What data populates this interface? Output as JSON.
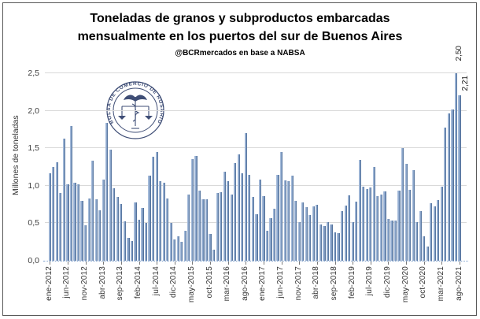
{
  "header": {
    "title_line1": "Toneladas de granos y subproductos embarcadas",
    "title_line2": "mensualmente en los puertos del sur de Buenos Aires",
    "subtitle": "@BCRmercados en base a NABSA"
  },
  "watermark": {
    "text": "BOLSA DE COMERCIO DE ROSARIO"
  },
  "chart_data": {
    "type": "bar",
    "title": "Toneladas de granos y subproductos embarcadas mensualmente en los puertos del sur de Buenos Aires",
    "subtitle": "@BCRmercados en base a NABSA",
    "xlabel": "",
    "ylabel": "Millones de toneladas",
    "ylim": [
      0,
      2.5
    ],
    "y_tick_step": 0.5,
    "y_tick_labels": [
      "0,0",
      "0,5",
      "1,0",
      "1,5",
      "2,0",
      "2,5"
    ],
    "grid": "horizontal-light",
    "legend": "none",
    "x_tick_interval": 5,
    "x_tick_labels_shown": [
      "ene-2012",
      "jun-2012",
      "nov-2012",
      "abr-2013",
      "sep-2013",
      "feb-2014",
      "jul-2014",
      "dic-2014",
      "may-2015",
      "oct-2015",
      "mar-2016",
      "ago-2016",
      "ene-2017",
      "jun-2017",
      "nov-2017",
      "abr-2018",
      "sep-2018",
      "feb-2019",
      "jul-2019",
      "dic-2019",
      "may-2020",
      "oct-2020",
      "mar-2021",
      "ago-2021"
    ],
    "categories": [
      "ene-2012",
      "feb-2012",
      "mar-2012",
      "abr-2012",
      "may-2012",
      "jun-2012",
      "jul-2012",
      "ago-2012",
      "sep-2012",
      "oct-2012",
      "nov-2012",
      "dic-2012",
      "ene-2013",
      "feb-2013",
      "mar-2013",
      "abr-2013",
      "may-2013",
      "jun-2013",
      "jul-2013",
      "ago-2013",
      "sep-2013",
      "oct-2013",
      "nov-2013",
      "dic-2013",
      "ene-2014",
      "feb-2014",
      "mar-2014",
      "abr-2014",
      "may-2014",
      "jun-2014",
      "jul-2014",
      "ago-2014",
      "sep-2014",
      "oct-2014",
      "nov-2014",
      "dic-2014",
      "ene-2015",
      "feb-2015",
      "mar-2015",
      "abr-2015",
      "may-2015",
      "jun-2015",
      "jul-2015",
      "ago-2015",
      "sep-2015",
      "oct-2015",
      "nov-2015",
      "dic-2015",
      "ene-2016",
      "feb-2016",
      "mar-2016",
      "abr-2016",
      "may-2016",
      "jun-2016",
      "jul-2016",
      "ago-2016",
      "sep-2016",
      "oct-2016",
      "nov-2016",
      "dic-2016",
      "ene-2017",
      "feb-2017",
      "mar-2017",
      "abr-2017",
      "may-2017",
      "jun-2017",
      "jul-2017",
      "ago-2017",
      "sep-2017",
      "oct-2017",
      "nov-2017",
      "dic-2017",
      "ene-2018",
      "feb-2018",
      "mar-2018",
      "abr-2018",
      "may-2018",
      "jun-2018",
      "jul-2018",
      "ago-2018",
      "sep-2018",
      "oct-2018",
      "nov-2018",
      "dic-2018",
      "ene-2019",
      "feb-2019",
      "mar-2019",
      "abr-2019",
      "may-2019",
      "jun-2019",
      "jul-2019",
      "ago-2019",
      "sep-2019",
      "oct-2019",
      "nov-2019",
      "dic-2019",
      "ene-2020",
      "feb-2020",
      "mar-2020",
      "abr-2020",
      "may-2020",
      "jun-2020",
      "jul-2020",
      "ago-2020",
      "sep-2020",
      "oct-2020",
      "nov-2020",
      "dic-2020",
      "ene-2021",
      "feb-2021",
      "mar-2021",
      "abr-2021",
      "may-2021",
      "jun-2021",
      "jul-2021",
      "ago-2021"
    ],
    "values": [
      1.17,
      1.25,
      1.31,
      0.9,
      1.63,
      1.02,
      1.8,
      1.04,
      1.02,
      0.8,
      0.47,
      0.83,
      1.33,
      0.82,
      0.67,
      1.08,
      1.84,
      1.48,
      0.97,
      0.85,
      0.76,
      0.53,
      0.3,
      0.26,
      0.78,
      0.55,
      0.7,
      0.5,
      1.13,
      1.39,
      1.45,
      1.06,
      1.04,
      0.83,
      0.5,
      0.28,
      0.33,
      0.25,
      0.4,
      0.88,
      1.35,
      1.4,
      0.94,
      0.82,
      0.82,
      0.36,
      0.15,
      0.9,
      0.91,
      1.19,
      1.06,
      0.88,
      1.3,
      1.42,
      1.17,
      1.7,
      1.15,
      0.85,
      0.62,
      1.08,
      0.86,
      0.4,
      0.57,
      0.69,
      1.14,
      1.45,
      1.07,
      1.06,
      1.13,
      0.8,
      0.52,
      0.78,
      0.71,
      0.61,
      0.73,
      0.75,
      0.48,
      0.46,
      0.51,
      0.48,
      0.38,
      0.37,
      0.66,
      0.74,
      0.87,
      0.52,
      0.79,
      1.34,
      0.99,
      0.96,
      0.98,
      1.25,
      0.86,
      0.88,
      0.92,
      0.56,
      0.54,
      0.54,
      0.94,
      1.5,
      1.29,
      0.95,
      1.21,
      0.51,
      0.66,
      0.33,
      0.19,
      0.77,
      0.73,
      0.81,
      0.99,
      1.78,
      1.96,
      2.02,
      2.5,
      2.21
    ],
    "data_labels": [
      {
        "category": "jul-2021",
        "label": "2,50"
      },
      {
        "category": "ago-2021",
        "label": "2,21"
      }
    ],
    "colors": {
      "bar_light": "#B0C4E0",
      "bar_dark": "#44648F",
      "gridline": "#D9D9D9",
      "baseline_dotted": "#7DA0CC",
      "axis_text": "#404040",
      "watermark": "#2F3F6B"
    }
  }
}
